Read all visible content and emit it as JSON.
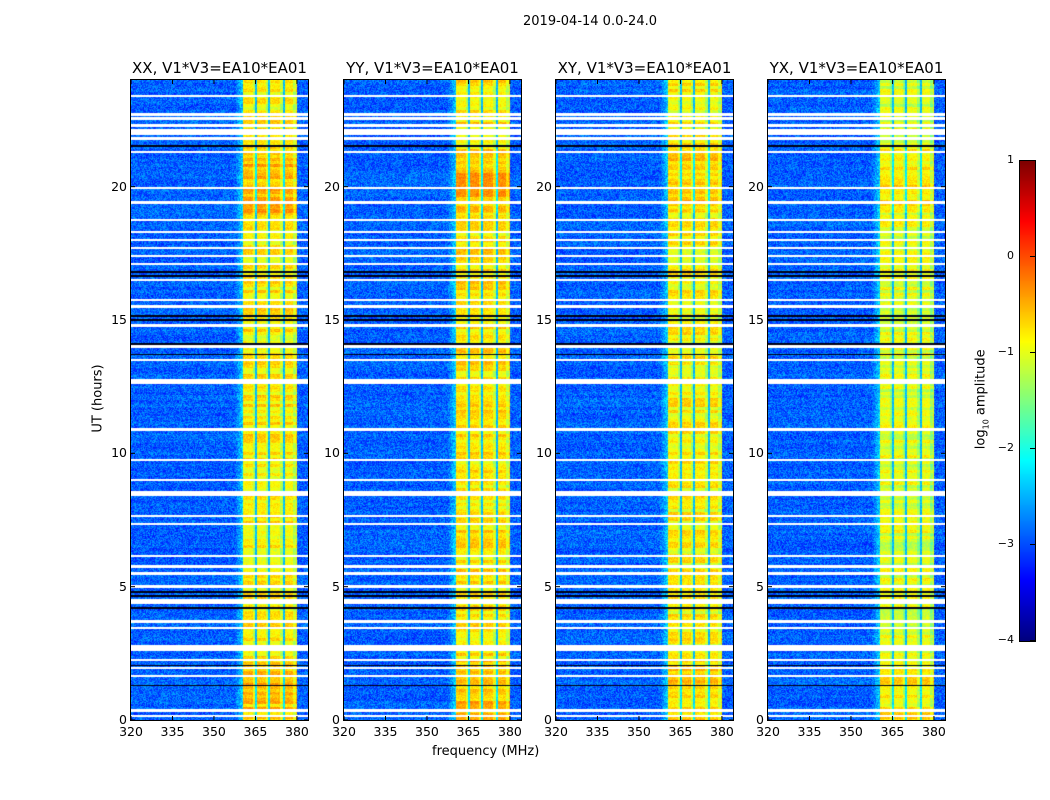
{
  "chart_data": {
    "type": "heatmap",
    "title": "2019-04-14 0.0-24.0",
    "xlabel": "frequency (MHz)",
    "ylabel": "UT (hours)",
    "xlim": [
      320,
      384
    ],
    "ylim": [
      0,
      24
    ],
    "xticks": [
      "320",
      "335",
      "350",
      "365",
      "380"
    ],
    "xtick_values": [
      320,
      335,
      350,
      365,
      380
    ],
    "yticks": [
      "0",
      "5",
      "10",
      "15",
      "20"
    ],
    "ytick_values": [
      0,
      5,
      10,
      15,
      20
    ],
    "colorbar": {
      "label": "log10 amplitude",
      "label_main": "log",
      "label_sub": "10",
      "label_rest": " amplitude",
      "colormap": "jet",
      "range": [
        -4,
        1
      ],
      "ticks": [
        "1",
        "0",
        "−1",
        "−2",
        "−3",
        "−4"
      ],
      "tick_values": [
        1,
        0,
        -1,
        -2,
        -3,
        -4
      ]
    },
    "panels": [
      {
        "title": "XX, V1*V3=EA10*EA01",
        "band_level": -0.55
      },
      {
        "title": "YY, V1*V3=EA10*EA01",
        "band_level": -0.5
      },
      {
        "title": "XY, V1*V3=EA10*EA01",
        "band_level": -0.6
      },
      {
        "title": "YX, V1*V3=EA10*EA01",
        "band_level": -0.75
      }
    ],
    "background_level": -2.9,
    "band_range_mhz": [
      360.5,
      380
    ],
    "band_notches_mhz": [
      365.2,
      369.9,
      375.3
    ],
    "flagged_gaps_ut": [
      23.4,
      22.7,
      22.55,
      22.3,
      22.1,
      22.0,
      21.8,
      21.3,
      19.95,
      19.4,
      18.75,
      18.3,
      18.0,
      17.7,
      17.4,
      17.1,
      16.5,
      15.75,
      15.5,
      14.8,
      14.0,
      13.5,
      12.75,
      12.65,
      10.9,
      9.75,
      9.0,
      8.55,
      8.45,
      7.65,
      7.35,
      6.15,
      5.75,
      5.5,
      5.0,
      4.5,
      4.4,
      3.7,
      3.45,
      2.75,
      2.65,
      2.25,
      1.95,
      1.65,
      0.35,
      0.15
    ],
    "dark_rows_ut": [
      21.55,
      21.5,
      16.8,
      16.65,
      15.15,
      15.0,
      14.1,
      13.7,
      4.8,
      4.65,
      4.2,
      2.05,
      1.3
    ]
  }
}
